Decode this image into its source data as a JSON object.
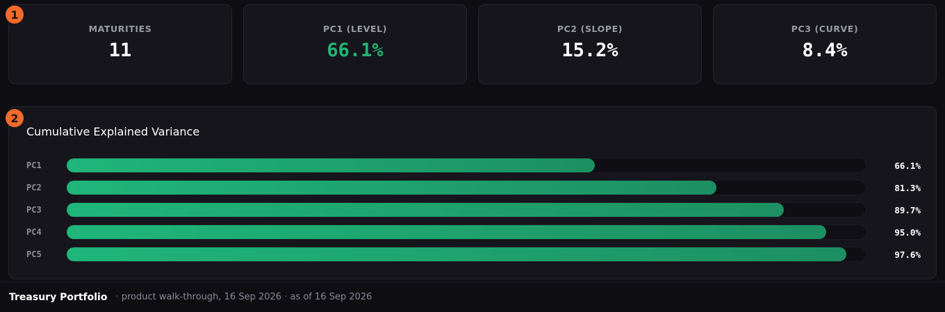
{
  "stats": [
    {
      "label": "MATURITIES",
      "value": "11",
      "accent": false
    },
    {
      "label": "PC1 (LEVEL)",
      "value": "66.1%",
      "accent": true
    },
    {
      "label": "PC2 (SLOPE)",
      "value": "15.2%",
      "accent": false
    },
    {
      "label": "PC3 (CURVE)",
      "value": "8.4%",
      "accent": false
    }
  ],
  "badges": [
    "1",
    "2"
  ],
  "variance": {
    "title": "Cumulative Explained Variance",
    "rows": [
      {
        "label": "PC1",
        "value": "66.1%"
      },
      {
        "label": "PC2",
        "value": "81.3%"
      },
      {
        "label": "PC3",
        "value": "89.7%"
      },
      {
        "label": "PC4",
        "value": "95.0%"
      },
      {
        "label": "PC5",
        "value": "97.6%"
      }
    ]
  },
  "chart_data": {
    "type": "bar",
    "title": "Cumulative Explained Variance",
    "categories": [
      "PC1",
      "PC2",
      "PC3",
      "PC4",
      "PC5"
    ],
    "values": [
      66.1,
      81.3,
      89.7,
      95.0,
      97.6
    ],
    "ylim": [
      0,
      100
    ],
    "orientation": "horizontal",
    "units": "%"
  },
  "footer": {
    "brand": "Treasury Portfolio",
    "sep1": "·",
    "walkthrough": "product walk-through, 16 Sep 2026",
    "sep2": "·",
    "asof": "as of 16 Sep 2026"
  },
  "colors": {
    "accent": "#22b574",
    "badge": "#f26b2c",
    "bar_start": "#1fb67a",
    "bar_end": "#1d8f62"
  }
}
